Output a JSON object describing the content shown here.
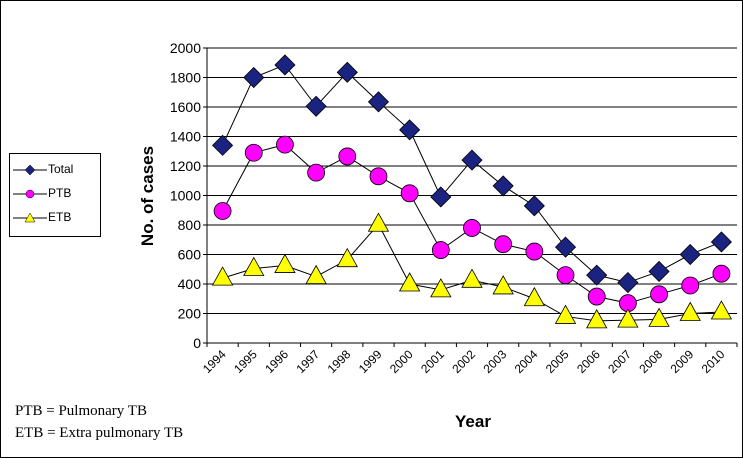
{
  "chart_data": {
    "type": "line",
    "xlabel": "Year",
    "ylabel": "No. of cases",
    "ylim": [
      0,
      2000
    ],
    "ytick_step": 200,
    "grid": "horizontal",
    "legend_position": "left",
    "categories": [
      "1994",
      "1995",
      "1996",
      "1997",
      "1998",
      "1999",
      "2000",
      "2001",
      "2002",
      "2003",
      "2004",
      "2005",
      "2006",
      "2007",
      "2008",
      "2009",
      "2010"
    ],
    "series": [
      {
        "name": "Total",
        "marker": "diamond",
        "color": "#1a2380",
        "values": [
          1340,
          1800,
          1885,
          1605,
          1835,
          1635,
          1445,
          990,
          1240,
          1065,
          930,
          650,
          460,
          410,
          485,
          600,
          685
        ]
      },
      {
        "name": "PTB",
        "marker": "circle",
        "color": "#ff00ff",
        "values": [
          895,
          1290,
          1345,
          1155,
          1265,
          1130,
          1015,
          630,
          780,
          670,
          620,
          460,
          315,
          270,
          330,
          390,
          470
        ]
      },
      {
        "name": "ETB",
        "marker": "triangle",
        "color": "#ffff00",
        "values": [
          440,
          505,
          525,
          450,
          565,
          805,
          400,
          360,
          425,
          380,
          300,
          180,
          150,
          155,
          160,
          200,
          210
        ]
      }
    ]
  },
  "notes": [
    "PTB = Pulmonary TB",
    "ETB = Extra pulmonary TB"
  ]
}
